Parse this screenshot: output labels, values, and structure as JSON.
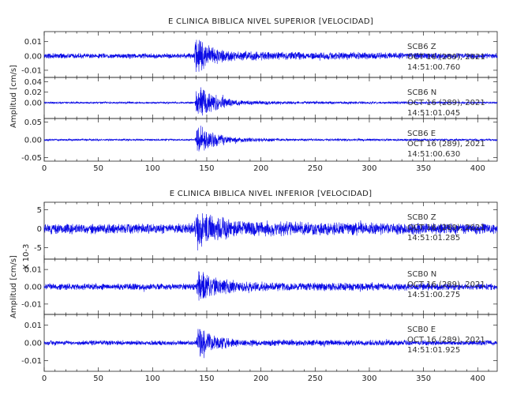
{
  "chart_data": [
    {
      "type": "line",
      "title": "E CLINICA BIBLICA NIVEL SUPERIOR [VELOCIDAD]",
      "ylabel": "Amplitud [cm/s]",
      "xlim": [
        0,
        418
      ],
      "x_ticks": [
        "0",
        "50",
        "100",
        "150",
        "200",
        "250",
        "300",
        "350",
        "400"
      ],
      "series_color": "#0a0ae6",
      "series": [
        {
          "name": "SCB6 Z",
          "station": "SCB6",
          "component": "Z",
          "date": "OCT 16 (289), 2021",
          "time": "14:51:00.760",
          "ylim": [
            -0.015,
            0.017
          ],
          "y_ticks": [
            "0.01",
            "0.00",
            "-0.01"
          ],
          "y_tick_values": [
            0.01,
            0.0,
            -0.01
          ],
          "noise_amplitude": 0.002,
          "event_onset": 140,
          "event_peak_amplitude": 0.017,
          "waveform": [
            [
              0,
              0.002
            ],
            [
              138,
              0.002
            ],
            [
              140,
              0.017
            ],
            [
              145,
              0.012
            ],
            [
              150,
              0.008
            ],
            [
              170,
              0.004
            ],
            [
              220,
              0.003
            ],
            [
              418,
              0.002
            ]
          ]
        },
        {
          "name": "SCB6 N",
          "station": "SCB6",
          "component": "N",
          "date": "OCT 16 (289), 2021",
          "time": "14:51:01.045",
          "ylim": [
            -0.03,
            0.048
          ],
          "y_ticks": [
            "0.04",
            "0.02",
            "0.00"
          ],
          "y_tick_values": [
            0.04,
            0.02,
            0.0
          ],
          "noise_amplitude": 0.002,
          "event_onset": 141,
          "event_peak_amplitude": 0.04,
          "waveform": [
            [
              0,
              0.002
            ],
            [
              139,
              0.002
            ],
            [
              142,
              0.04
            ],
            [
              147,
              0.03
            ],
            [
              152,
              0.02
            ],
            [
              175,
              0.006
            ],
            [
              220,
              0.003
            ],
            [
              418,
              0.002
            ]
          ]
        },
        {
          "name": "SCB6 E",
          "station": "SCB6",
          "component": "E",
          "date": "OCT 16 (289), 2021",
          "time": "14:51:00.630",
          "ylim": [
            -0.06,
            0.06
          ],
          "y_ticks": [
            "0.05",
            "0.00",
            "-0.05"
          ],
          "y_tick_values": [
            0.05,
            0.0,
            -0.05
          ],
          "noise_amplitude": 0.003,
          "event_onset": 141,
          "event_peak_amplitude": 0.05,
          "waveform": [
            [
              0,
              0.003
            ],
            [
              139,
              0.003
            ],
            [
              142,
              0.05
            ],
            [
              147,
              0.04
            ],
            [
              152,
              0.025
            ],
            [
              175,
              0.008
            ],
            [
              220,
              0.004
            ],
            [
              418,
              0.003
            ]
          ]
        }
      ]
    },
    {
      "type": "line",
      "title": "E CLINICA BIBLICA NIVEL INFERIOR [VELOCIDAD]",
      "ylabel": "Amplitud [cm/s]",
      "xlim": [
        0,
        418
      ],
      "x_ticks": [
        "0",
        "50",
        "100",
        "150",
        "200",
        "250",
        "300",
        "350",
        "400"
      ],
      "series_color": "#0a0ae6",
      "series": [
        {
          "name": "SCB0 Z",
          "station": "SCB0",
          "component": "Z",
          "date": "OCT 16 (289), 2021",
          "time": "14:51:01.285",
          "scale_label": "X 10-3",
          "ylim": [
            -8,
            7
          ],
          "y_ticks": [
            "5",
            "0",
            "-5"
          ],
          "y_tick_values": [
            5,
            0,
            -5
          ],
          "noise_amplitude": 1.5,
          "event_onset": 140,
          "event_peak_amplitude": 6.5,
          "waveform": [
            [
              0,
              1.5
            ],
            [
              138,
              1.5
            ],
            [
              141,
              6.5
            ],
            [
              146,
              5.5
            ],
            [
              152,
              4
            ],
            [
              175,
              2.5
            ],
            [
              230,
              2
            ],
            [
              418,
              1.5
            ]
          ]
        },
        {
          "name": "SCB0 N",
          "station": "SCB0",
          "component": "N",
          "date": "OCT 16 (289), 2021",
          "time": "14:51:00.275",
          "ylim": [
            -0.016,
            0.016
          ],
          "y_ticks": [
            "0.01",
            "0.00",
            "-0.01"
          ],
          "y_tick_values": [
            0.01,
            0.0,
            -0.01
          ],
          "noise_amplitude": 0.002,
          "event_onset": 142,
          "event_peak_amplitude": 0.012,
          "waveform": [
            [
              0,
              0.002
            ],
            [
              140,
              0.002
            ],
            [
              143,
              0.012
            ],
            [
              148,
              0.009
            ],
            [
              155,
              0.006
            ],
            [
              180,
              0.003
            ],
            [
              418,
              0.002
            ]
          ]
        },
        {
          "name": "SCB0 E",
          "station": "SCB0",
          "component": "E",
          "date": "OCT 16 (289), 2021",
          "time": "14:51:01.925",
          "ylim": [
            -0.016,
            0.016
          ],
          "y_ticks": [
            "0.01",
            "0.00",
            "-0.01"
          ],
          "y_tick_values": [
            0.01,
            0.0,
            -0.01
          ],
          "noise_amplitude": 0.0015,
          "event_onset": 142,
          "event_peak_amplitude": 0.013,
          "waveform": [
            [
              0,
              0.0015
            ],
            [
              140,
              0.0015
            ],
            [
              143,
              0.013
            ],
            [
              148,
              0.009
            ],
            [
              155,
              0.005
            ],
            [
              180,
              0.002
            ],
            [
              418,
              0.0015
            ]
          ]
        }
      ]
    }
  ]
}
